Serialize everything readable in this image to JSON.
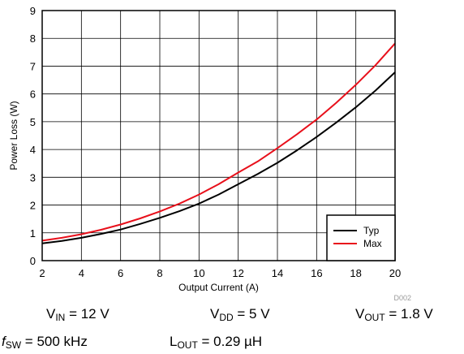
{
  "chart_data": {
    "type": "line",
    "xlabel": "Output Current (A)",
    "ylabel": "Power Loss (W)",
    "xlim": [
      2,
      20
    ],
    "ylim": [
      0,
      9
    ],
    "xticks": [
      2,
      4,
      6,
      8,
      10,
      12,
      14,
      16,
      18,
      20
    ],
    "yticks": [
      0,
      1,
      2,
      3,
      4,
      5,
      6,
      7,
      8,
      9
    ],
    "grid": true,
    "legend_position": "bottom-right",
    "series": [
      {
        "name": "Typ",
        "color": "#000000",
        "x": [
          2,
          3,
          4,
          5,
          6,
          7,
          8,
          9,
          10,
          11,
          12,
          13,
          14,
          15,
          16,
          17,
          18,
          19,
          20
        ],
        "y": [
          0.62,
          0.71,
          0.82,
          0.96,
          1.12,
          1.32,
          1.54,
          1.78,
          2.05,
          2.38,
          2.75,
          3.12,
          3.52,
          3.97,
          4.45,
          4.97,
          5.52,
          6.12,
          6.78
        ]
      },
      {
        "name": "Max",
        "color": "#e8101b",
        "x": [
          2,
          3,
          4,
          5,
          6,
          7,
          8,
          9,
          10,
          11,
          12,
          13,
          14,
          15,
          16,
          17,
          18,
          19,
          20
        ],
        "y": [
          0.72,
          0.82,
          0.95,
          1.11,
          1.3,
          1.52,
          1.77,
          2.05,
          2.38,
          2.75,
          3.17,
          3.57,
          4.05,
          4.55,
          5.08,
          5.68,
          6.33,
          7.03,
          7.82
        ]
      }
    ]
  },
  "figure_id": "D002",
  "conditions": {
    "vin": {
      "symbol": "V",
      "subscript": "IN",
      "value": " = 12 V"
    },
    "vdd": {
      "symbol": "V",
      "subscript": "DD",
      "value": " = 5 V"
    },
    "vout": {
      "symbol": "V",
      "subscript": "OUT",
      "value": " = 1.8 V"
    },
    "fsw": {
      "symbol": "f",
      "subscript": "SW",
      "value": " = 500 kHz"
    },
    "lout": {
      "symbol": "L",
      "subscript": "OUT",
      "value": " = 0.29 µH"
    }
  }
}
